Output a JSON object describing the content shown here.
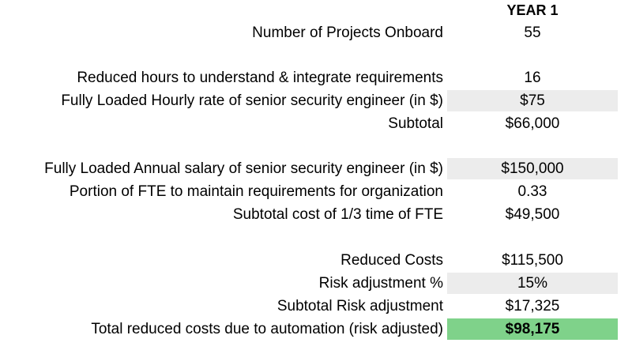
{
  "column_header": "YEAR 1",
  "rows": [
    {
      "label": "Number of Projects Onboard",
      "value": "55"
    },
    {
      "label": "Reduced hours to understand & integrate requirements",
      "value": "16"
    },
    {
      "label": "Fully Loaded Hourly rate of senior security engineer (in $)",
      "value": "$75"
    },
    {
      "label": "Subtotal",
      "value": "$66,000"
    },
    {
      "label": "Fully Loaded Annual salary of senior security engineer (in $)",
      "value": "$150,000"
    },
    {
      "label": "Portion of FTE to maintain requirements for organization",
      "value": "0.33"
    },
    {
      "label": "Subtotal cost of 1/3 time of FTE",
      "value": "$49,500"
    },
    {
      "label": "Reduced Costs",
      "value": "$115,500"
    },
    {
      "label": "Risk adjustment %",
      "value": "15%"
    },
    {
      "label": "Subtotal Risk adjustment",
      "value": "$17,325"
    },
    {
      "label": "Total reduced costs due to automation (risk adjusted)",
      "value": "$98,175"
    }
  ],
  "colors": {
    "shaded_cell": "#ececec",
    "total_highlight": "#7fd28a"
  }
}
